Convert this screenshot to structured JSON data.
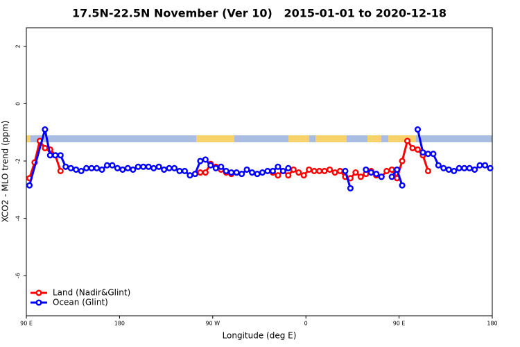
{
  "chart_data": {
    "type": "line",
    "title": "17.5N-22.5N November (Ver 10)   2015-01-01 to 2020-12-18",
    "x_label": "Longitude (deg E)",
    "y_label": "XCO2 - MLO trend (ppm)",
    "xlim": [
      90,
      540
    ],
    "xticks": [
      {
        "value": 90,
        "label": "90 E"
      },
      180,
      {
        "value": 270,
        "label": "90 W"
      },
      {
        "value": 360,
        "label": "0"
      },
      {
        "value": 450,
        "label": "90 E"
      },
      {
        "value": 540,
        "label": "180"
      }
    ],
    "ylim": [
      -7.4,
      2.65
    ],
    "yticks": [
      2,
      0,
      -2,
      -4,
      -6
    ],
    "legend": "bottom-left",
    "series": [
      {
        "name": "Land (Nadir&Glint)",
        "color": "#ff0000",
        "x": [
          93,
          98,
          103,
          108,
          113,
          118,
          123,
          190,
          258,
          263,
          268,
          273,
          278,
          283,
          288,
          300,
          328,
          333,
          338,
          343,
          348,
          353,
          358,
          363,
          368,
          373,
          378,
          383,
          388,
          393,
          398,
          403,
          408,
          413,
          418,
          423,
          428,
          433,
          438,
          443,
          448,
          453,
          458,
          463,
          468,
          473,
          478
        ],
        "values": [
          -2.6,
          -2.05,
          -1.3,
          -1.55,
          -1.6,
          -1.8,
          -2.35,
          null,
          -2.4,
          -2.4,
          -2.1,
          -2.2,
          -2.3,
          -2.4,
          -2.45,
          null,
          -2.4,
          -2.5,
          -2.35,
          -2.5,
          -2.3,
          -2.4,
          -2.5,
          -2.3,
          -2.35,
          -2.35,
          -2.35,
          -2.3,
          -2.4,
          -2.35,
          -2.55,
          -2.6,
          -2.4,
          -2.55,
          -2.45,
          -2.35,
          -2.5,
          -2.55,
          -2.35,
          -2.3,
          -2.6,
          -2.0,
          -1.3,
          -1.55,
          -1.6,
          -1.8,
          -2.35
        ]
      },
      {
        "name": "Ocean (Glint)",
        "color": "#0000ff",
        "x": [
          93,
          108,
          113,
          118,
          123,
          128,
          133,
          138,
          143,
          148,
          153,
          158,
          163,
          168,
          173,
          178,
          183,
          188,
          193,
          198,
          203,
          208,
          213,
          218,
          223,
          228,
          233,
          238,
          243,
          248,
          253,
          258,
          263,
          268,
          273,
          278,
          283,
          288,
          293,
          298,
          303,
          308,
          313,
          318,
          323,
          328,
          333,
          338,
          343,
          370,
          398,
          403,
          410,
          418,
          423,
          428,
          433,
          438,
          443,
          448,
          453,
          460,
          468,
          473,
          478,
          483,
          488,
          493,
          498,
          503,
          508,
          513,
          518,
          523,
          528,
          533,
          538
        ],
        "values": [
          -2.85,
          -0.9,
          -1.8,
          -1.8,
          -1.8,
          -2.2,
          -2.25,
          -2.3,
          -2.35,
          -2.25,
          -2.25,
          -2.25,
          -2.3,
          -2.15,
          -2.15,
          -2.25,
          -2.3,
          -2.25,
          -2.3,
          -2.2,
          -2.2,
          -2.2,
          -2.25,
          -2.2,
          -2.3,
          -2.25,
          -2.25,
          -2.35,
          -2.35,
          -2.5,
          -2.45,
          -2.0,
          -1.95,
          -2.15,
          -2.25,
          -2.2,
          -2.35,
          -2.4,
          -2.4,
          -2.45,
          -2.3,
          -2.4,
          -2.45,
          -2.4,
          -2.35,
          -2.35,
          -2.2,
          -2.35,
          -2.25,
          null,
          -2.35,
          -2.95,
          null,
          -2.3,
          -2.4,
          -2.45,
          -2.55,
          null,
          -2.55,
          -2.3,
          -2.85,
          null,
          -0.9,
          -1.7,
          -1.75,
          -1.75,
          -2.15,
          -2.25,
          -2.3,
          -2.35,
          -2.25,
          -2.25,
          -2.25,
          -2.3,
          -2.15,
          -2.15,
          -2.25
        ]
      }
    ]
  }
}
